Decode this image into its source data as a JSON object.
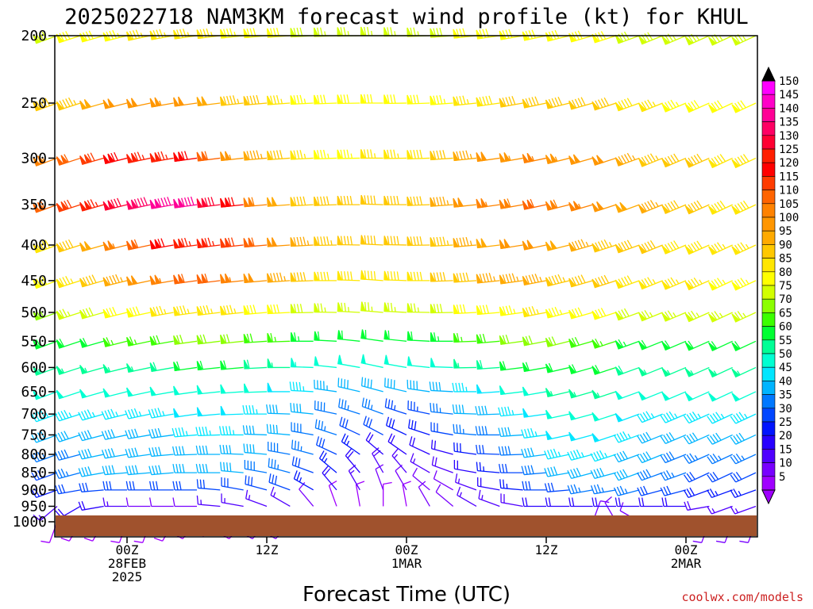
{
  "chart_data": {
    "type": "wind-barb time-height cross section",
    "title": "2025022718 NAM3KM forecast wind profile (kt) for KHUL",
    "xlabel": "Forecast Time (UTC)",
    "credit": "coolwx.com/models",
    "y_axis": {
      "scale": "log-pressure",
      "range_hpa": [
        1000,
        200
      ],
      "ticks": [
        "200",
        "250",
        "300",
        "350",
        "400",
        "450",
        "500",
        "550",
        "600",
        "650",
        "700",
        "750",
        "800",
        "850",
        "900",
        "950",
        "1000"
      ]
    },
    "x_axis": {
      "range_hours": [
        0,
        60
      ],
      "ticks": [
        {
          "hour": 6,
          "lines": [
            "00Z",
            "28FEB",
            "2025"
          ]
        },
        {
          "hour": 18,
          "lines": [
            "12Z"
          ]
        },
        {
          "hour": 30,
          "lines": [
            "00Z",
            "1MAR"
          ]
        },
        {
          "hour": 42,
          "lines": [
            "12Z"
          ]
        },
        {
          "hour": 54,
          "lines": [
            "00Z",
            "2MAR"
          ]
        }
      ]
    },
    "colorbar": {
      "unit": "kt",
      "levels": [
        "150",
        "145",
        "140",
        "135",
        "130",
        "125",
        "120",
        "115",
        "110",
        "105",
        "100",
        "95",
        "90",
        "85",
        "80",
        "75",
        "70",
        "65",
        "60",
        "55",
        "50",
        "45",
        "40",
        "35",
        "30",
        "25",
        "20",
        "15",
        "10",
        "5"
      ],
      "colors": [
        "#ff00ff",
        "#ff00c8",
        "#ff0096",
        "#ff0064",
        "#ff0032",
        "#ff1e00",
        "#ff0000",
        "#ff3c00",
        "#ff6400",
        "#ff8200",
        "#ff9600",
        "#ffaa00",
        "#ffc800",
        "#ffe600",
        "#ffff00",
        "#d2ff00",
        "#8cff00",
        "#3cff00",
        "#00ff32",
        "#00ff96",
        "#00ffd2",
        "#00e6ff",
        "#00b4ff",
        "#0078ff",
        "#0046ff",
        "#0014ff",
        "#2800ff",
        "#5000ff",
        "#7800ff",
        "#a000ff"
      ]
    },
    "barb_times_hours": [
      0,
      2,
      4,
      6,
      8,
      10,
      12,
      14,
      16,
      18,
      20,
      22,
      24,
      26,
      28,
      30,
      32,
      34,
      36,
      38,
      40,
      42,
      44,
      46,
      48,
      50,
      52,
      54,
      56,
      58,
      60
    ],
    "levels_hpa": [
      {
        "p": 1000,
        "spd": [
          8,
          8,
          8,
          8,
          8,
          8,
          8,
          8,
          8,
          10,
          12,
          0,
          0,
          0,
          0,
          0,
          0,
          0,
          0,
          0,
          0,
          0,
          0,
          12,
          10,
          10,
          10,
          10,
          10,
          10,
          10
        ],
        "dir": [
          200,
          210,
          210,
          200,
          200,
          210,
          220,
          230,
          220,
          220,
          220,
          0,
          0,
          0,
          0,
          0,
          0,
          0,
          0,
          0,
          0,
          0,
          0,
          20,
          330,
          300,
          250,
          250,
          200,
          200,
          200
        ]
      },
      {
        "p": 950,
        "spd": [
          15,
          20,
          20,
          15,
          12,
          12,
          12,
          15,
          15,
          15,
          15,
          10,
          8,
          8,
          8,
          8,
          10,
          12,
          15,
          15,
          18,
          20,
          20,
          20,
          20,
          20,
          20,
          20,
          18,
          15,
          15
        ],
        "dir": [
          230,
          240,
          260,
          270,
          270,
          270,
          270,
          275,
          280,
          290,
          300,
          320,
          340,
          350,
          0,
          350,
          330,
          310,
          300,
          290,
          280,
          270,
          270,
          270,
          270,
          270,
          270,
          270,
          260,
          250,
          250
        ]
      },
      {
        "p": 900,
        "spd": [
          25,
          30,
          30,
          30,
          30,
          30,
          30,
          30,
          30,
          30,
          30,
          25,
          20,
          15,
          12,
          10,
          10,
          12,
          15,
          20,
          25,
          30,
          32,
          35,
          35,
          35,
          32,
          30,
          28,
          25,
          25
        ],
        "dir": [
          250,
          260,
          265,
          270,
          270,
          270,
          270,
          275,
          280,
          285,
          290,
          300,
          320,
          330,
          340,
          330,
          310,
          300,
          290,
          280,
          275,
          270,
          265,
          260,
          260,
          255,
          255,
          255,
          250,
          250,
          250
        ]
      },
      {
        "p": 850,
        "spd": [
          30,
          35,
          40,
          40,
          40,
          40,
          40,
          40,
          40,
          38,
          35,
          30,
          25,
          20,
          18,
          15,
          15,
          18,
          20,
          25,
          32,
          38,
          40,
          42,
          42,
          40,
          38,
          35,
          32,
          30,
          30
        ],
        "dir": [
          250,
          255,
          260,
          265,
          265,
          265,
          270,
          270,
          275,
          280,
          285,
          290,
          310,
          320,
          330,
          320,
          300,
          290,
          280,
          275,
          270,
          265,
          260,
          255,
          255,
          250,
          250,
          250,
          245,
          245,
          245
        ]
      },
      {
        "p": 800,
        "spd": [
          35,
          38,
          40,
          40,
          40,
          40,
          42,
          42,
          42,
          40,
          38,
          35,
          30,
          25,
          22,
          20,
          20,
          22,
          28,
          32,
          38,
          42,
          45,
          45,
          45,
          42,
          40,
          38,
          35,
          35,
          35
        ],
        "dir": [
          250,
          255,
          258,
          260,
          262,
          265,
          268,
          270,
          272,
          275,
          280,
          285,
          295,
          305,
          310,
          305,
          295,
          285,
          278,
          272,
          268,
          262,
          258,
          255,
          252,
          250,
          248,
          248,
          246,
          245,
          245
        ]
      },
      {
        "p": 750,
        "spd": [
          40,
          40,
          42,
          42,
          42,
          42,
          45,
          45,
          45,
          42,
          40,
          38,
          35,
          32,
          30,
          28,
          28,
          30,
          35,
          38,
          42,
          45,
          48,
          48,
          48,
          45,
          42,
          40,
          40,
          40,
          40
        ],
        "dir": [
          250,
          252,
          255,
          258,
          260,
          262,
          265,
          268,
          270,
          272,
          275,
          280,
          288,
          295,
          298,
          295,
          288,
          280,
          275,
          270,
          266,
          262,
          258,
          255,
          252,
          250,
          248,
          247,
          246,
          245,
          245
        ]
      },
      {
        "p": 700,
        "spd": [
          45,
          45,
          45,
          45,
          45,
          45,
          48,
          48,
          48,
          45,
          42,
          40,
          38,
          36,
          35,
          34,
          34,
          36,
          40,
          42,
          45,
          48,
          50,
          50,
          50,
          48,
          45,
          45,
          45,
          45,
          45
        ],
        "dir": [
          250,
          252,
          254,
          256,
          258,
          260,
          262,
          265,
          268,
          270,
          272,
          276,
          282,
          288,
          290,
          288,
          282,
          276,
          272,
          268,
          265,
          262,
          258,
          255,
          252,
          250,
          248,
          247,
          246,
          245,
          245
        ]
      },
      {
        "p": 650,
        "spd": [
          50,
          50,
          50,
          50,
          50,
          50,
          52,
          52,
          52,
          50,
          48,
          46,
          44,
          42,
          40,
          40,
          40,
          42,
          45,
          48,
          50,
          52,
          55,
          55,
          55,
          52,
          50,
          50,
          50,
          50,
          50
        ],
        "dir": [
          250,
          252,
          254,
          256,
          258,
          260,
          262,
          264,
          266,
          268,
          270,
          273,
          278,
          283,
          285,
          283,
          278,
          273,
          270,
          266,
          263,
          260,
          257,
          254,
          252,
          250,
          248,
          247,
          246,
          245,
          245
        ]
      },
      {
        "p": 600,
        "spd": [
          55,
          55,
          55,
          55,
          55,
          58,
          60,
          60,
          60,
          58,
          56,
          54,
          52,
          50,
          50,
          50,
          50,
          52,
          55,
          58,
          60,
          62,
          62,
          62,
          60,
          58,
          55,
          55,
          55,
          55,
          55
        ],
        "dir": [
          250,
          252,
          254,
          256,
          258,
          260,
          262,
          264,
          265,
          267,
          270,
          272,
          276,
          280,
          282,
          280,
          276,
          272,
          269,
          266,
          263,
          260,
          257,
          254,
          252,
          250,
          248,
          247,
          246,
          245,
          245
        ]
      },
      {
        "p": 550,
        "spd": [
          60,
          62,
          62,
          65,
          65,
          68,
          70,
          70,
          70,
          68,
          66,
          64,
          62,
          62,
          62,
          62,
          62,
          64,
          66,
          68,
          70,
          70,
          70,
          68,
          66,
          64,
          62,
          62,
          62,
          62,
          62
        ],
        "dir": [
          250,
          252,
          254,
          256,
          258,
          260,
          262,
          263,
          264,
          266,
          268,
          270,
          273,
          276,
          278,
          276,
          273,
          270,
          268,
          265,
          262,
          259,
          256,
          254,
          252,
          250,
          248,
          247,
          246,
          245,
          245
        ]
      },
      {
        "p": 500,
        "spd": [
          72,
          75,
          78,
          80,
          82,
          85,
          85,
          85,
          85,
          82,
          80,
          78,
          76,
          76,
          76,
          76,
          76,
          78,
          80,
          82,
          84,
          85,
          84,
          82,
          80,
          78,
          76,
          76,
          76,
          76,
          76
        ],
        "dir": [
          250,
          252,
          254,
          256,
          258,
          260,
          262,
          263,
          264,
          265,
          267,
          269,
          271,
          273,
          275,
          273,
          271,
          269,
          267,
          265,
          262,
          259,
          256,
          254,
          252,
          250,
          248,
          247,
          246,
          245,
          245
        ]
      },
      {
        "p": 450,
        "spd": [
          82,
          85,
          90,
          95,
          100,
          105,
          110,
          110,
          105,
          100,
          95,
          90,
          88,
          88,
          88,
          88,
          88,
          90,
          92,
          95,
          96,
          95,
          94,
          92,
          90,
          88,
          86,
          85,
          85,
          84,
          84
        ],
        "dir": [
          250,
          252,
          254,
          256,
          258,
          260,
          262,
          263,
          264,
          265,
          266,
          268,
          270,
          272,
          274,
          272,
          270,
          268,
          266,
          264,
          262,
          259,
          256,
          254,
          252,
          250,
          248,
          247,
          246,
          245,
          245
        ]
      },
      {
        "p": 400,
        "spd": [
          88,
          92,
          98,
          105,
          112,
          120,
          125,
          125,
          118,
          110,
          102,
          96,
          94,
          92,
          92,
          92,
          92,
          94,
          96,
          98,
          100,
          100,
          98,
          96,
          94,
          92,
          90,
          88,
          88,
          86,
          86
        ],
        "dir": [
          250,
          252,
          254,
          256,
          258,
          260,
          262,
          263,
          264,
          265,
          266,
          267,
          269,
          271,
          273,
          271,
          269,
          267,
          265,
          263,
          261,
          258,
          256,
          254,
          252,
          250,
          248,
          247,
          246,
          245,
          245
        ]
      },
      {
        "p": 350,
        "spd": [
          110,
          118,
          125,
          132,
          138,
          142,
          140,
          130,
          120,
          108,
          98,
          92,
          90,
          90,
          90,
          90,
          92,
          95,
          100,
          105,
          108,
          110,
          108,
          105,
          102,
          98,
          95,
          92,
          90,
          88,
          88
        ],
        "dir": [
          250,
          252,
          254,
          256,
          258,
          260,
          262,
          263,
          264,
          265,
          266,
          267,
          268,
          270,
          272,
          270,
          268,
          266,
          264,
          262,
          260,
          258,
          256,
          254,
          252,
          250,
          248,
          247,
          246,
          245,
          245
        ]
      },
      {
        "p": 300,
        "spd": [
          105,
          112,
          118,
          122,
          125,
          125,
          120,
          112,
          104,
          96,
          90,
          86,
          84,
          84,
          85,
          86,
          88,
          92,
          96,
          100,
          104,
          106,
          104,
          102,
          100,
          96,
          94,
          92,
          90,
          88,
          88
        ],
        "dir": [
          250,
          252,
          254,
          256,
          258,
          260,
          262,
          263,
          264,
          265,
          266,
          267,
          268,
          269,
          270,
          269,
          268,
          266,
          264,
          262,
          260,
          258,
          256,
          254,
          252,
          250,
          248,
          247,
          246,
          245,
          245
        ]
      },
      {
        "p": 250,
        "spd": [
          90,
          94,
          98,
          100,
          102,
          104,
          102,
          98,
          94,
          90,
          86,
          84,
          82,
          82,
          82,
          82,
          82,
          84,
          86,
          88,
          90,
          92,
          92,
          92,
          90,
          88,
          86,
          84,
          82,
          80,
          80
        ],
        "dir": [
          250,
          252,
          254,
          256,
          258,
          260,
          262,
          263,
          264,
          265,
          266,
          267,
          268,
          269,
          270,
          269,
          268,
          266,
          264,
          262,
          260,
          258,
          256,
          254,
          252,
          250,
          248,
          247,
          246,
          245,
          245
        ]
      },
      {
        "p": 200,
        "spd": [
          78,
          80,
          82,
          84,
          85,
          86,
          86,
          85,
          84,
          82,
          80,
          78,
          76,
          76,
          76,
          76,
          76,
          78,
          80,
          82,
          82,
          82,
          82,
          82,
          80,
          78,
          78,
          76,
          76,
          75,
          75
        ],
        "dir": [
          250,
          252,
          254,
          256,
          258,
          260,
          262,
          263,
          264,
          265,
          266,
          267,
          268,
          269,
          270,
          269,
          268,
          266,
          264,
          262,
          260,
          258,
          256,
          254,
          252,
          250,
          248,
          247,
          246,
          245,
          245
        ]
      }
    ],
    "terrain_color": "#a0522d"
  }
}
